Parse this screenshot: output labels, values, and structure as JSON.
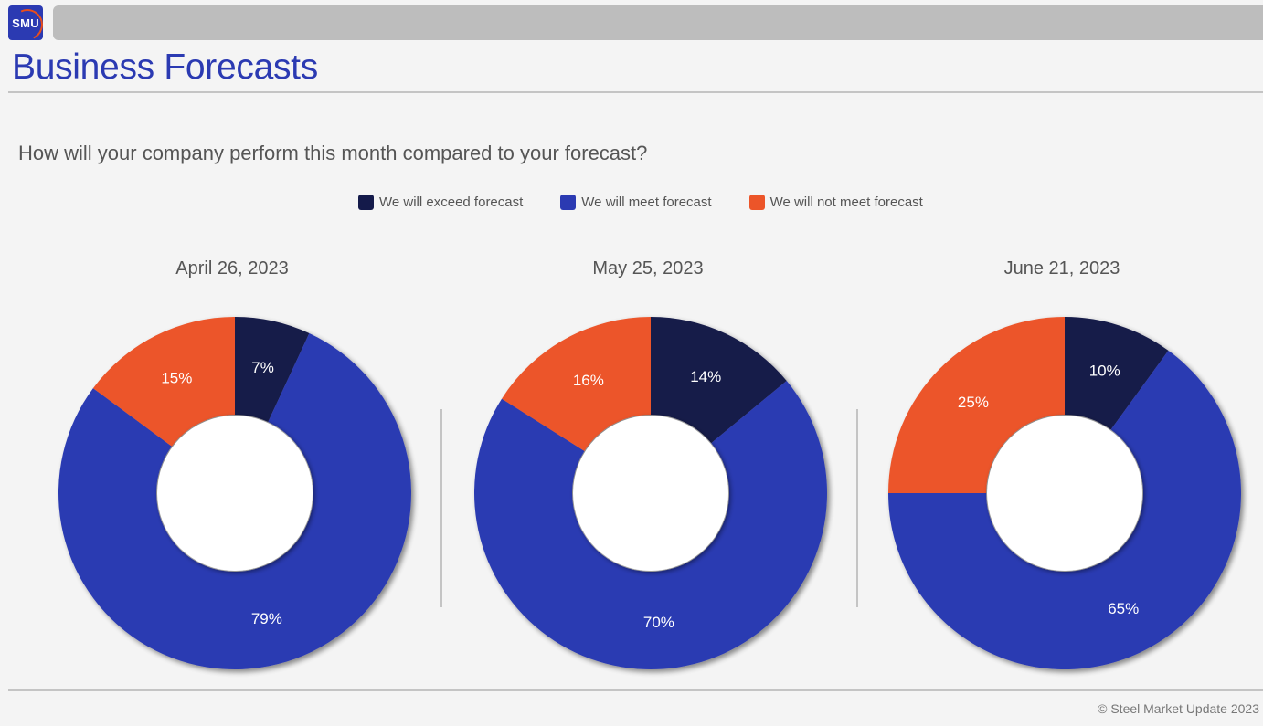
{
  "header": {
    "logo_text": "SMU",
    "title": "Business Forecasts"
  },
  "question": "How will your company perform this month compared to your forecast?",
  "legend": [
    {
      "label": "We will exceed forecast",
      "color": "#141a4a"
    },
    {
      "label": "We will meet forecast",
      "color": "#2b3ab2"
    },
    {
      "label": "We will not meet forecast",
      "color": "#ec5529"
    }
  ],
  "chart_data": [
    {
      "type": "pie",
      "title": "April 26, 2023",
      "categories": [
        "We will exceed forecast",
        "We will meet forecast",
        "We will not meet forecast"
      ],
      "values": [
        7,
        79,
        15
      ],
      "labels": [
        "7%",
        "79%",
        "15%"
      ]
    },
    {
      "type": "pie",
      "title": "May 25, 2023",
      "categories": [
        "We will exceed forecast",
        "We will meet forecast",
        "We will not meet forecast"
      ],
      "values": [
        14,
        70,
        16
      ],
      "labels": [
        "14%",
        "70%",
        "16%"
      ]
    },
    {
      "type": "pie",
      "title": "June 21, 2023",
      "categories": [
        "We will exceed forecast",
        "We will meet forecast",
        "We will not meet forecast"
      ],
      "values": [
        10,
        65,
        25
      ],
      "labels": [
        "10%",
        "65%",
        "25%"
      ]
    }
  ],
  "footer": "© Steel Market Update 2023"
}
